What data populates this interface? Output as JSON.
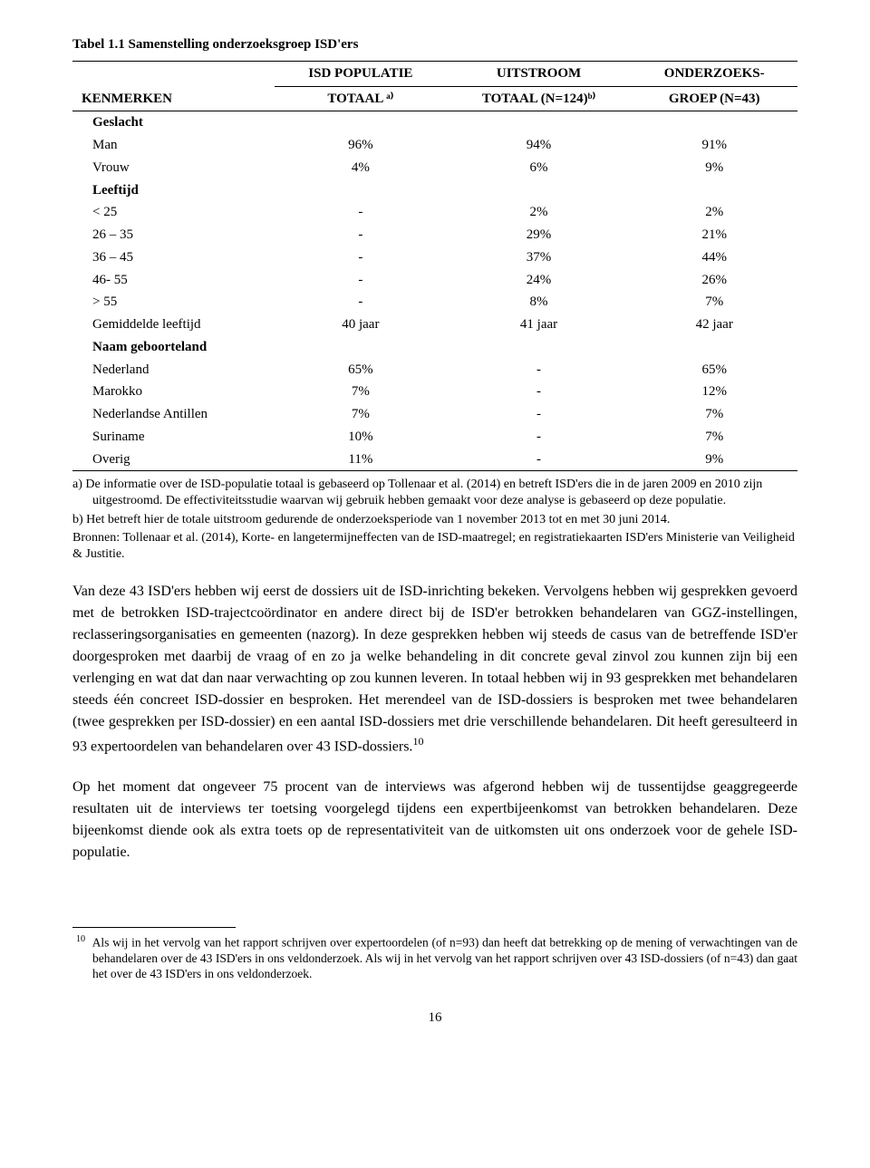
{
  "table": {
    "caption": "Tabel 1.1  Samenstelling onderzoeksgroep ISD'ers",
    "head": {
      "c0": "KENMERKEN",
      "c1a": "ISD POPULATIE",
      "c1b": "TOTAAL ᵃ⁾",
      "c2a": "UITSTROOM",
      "c2b": "TOTAAL (N=124)ᵇ⁾",
      "c3a": "ONDERZOEKS-",
      "c3b": "GROEP (N=43)"
    },
    "rows": [
      {
        "section": true,
        "label": "Geslacht"
      },
      {
        "label": "Man",
        "v": [
          "96%",
          "94%",
          "91%"
        ]
      },
      {
        "label": "Vrouw",
        "v": [
          "4%",
          "6%",
          "9%"
        ]
      },
      {
        "section": true,
        "label": "Leeftijd"
      },
      {
        "label": "< 25",
        "v": [
          "-",
          "2%",
          "2%"
        ]
      },
      {
        "label": "26 – 35",
        "v": [
          "-",
          "29%",
          "21%"
        ]
      },
      {
        "label": "36 – 45",
        "v": [
          "-",
          "37%",
          "44%"
        ]
      },
      {
        "label": "46- 55",
        "v": [
          "-",
          "24%",
          "26%"
        ]
      },
      {
        "label": "> 55",
        "v": [
          "-",
          "8%",
          "7%"
        ]
      },
      {
        "label": "Gemiddelde leeftijd",
        "v": [
          "40 jaar",
          "41 jaar",
          "42 jaar"
        ]
      },
      {
        "section": true,
        "label": "Naam geboorteland"
      },
      {
        "label": "Nederland",
        "v": [
          "65%",
          "-",
          "65%"
        ]
      },
      {
        "label": "Marokko",
        "v": [
          "7%",
          "-",
          "12%"
        ]
      },
      {
        "label": "Nederlandse Antillen",
        "v": [
          "7%",
          "-",
          "7%"
        ]
      },
      {
        "label": "Suriname",
        "v": [
          "10%",
          "-",
          "7%"
        ]
      },
      {
        "label": "Overig",
        "v": [
          "11%",
          "-",
          "9%"
        ],
        "last": true
      }
    ],
    "notes": {
      "a": "a)  De informatie over de ISD-populatie totaal is gebaseerd op Tollenaar et al. (2014) en betreft ISD'ers die in de jaren 2009 en 2010 zijn uitgestroomd. De effectiviteitsstudie waarvan wij gebruik hebben gemaakt voor deze analyse is gebaseerd op deze populatie.",
      "b": "b)  Het betreft hier de totale uitstroom gedurende de onderzoeksperiode van 1 november 2013 tot en met 30 juni 2014.",
      "bron": "Bronnen: Tollenaar et al. (2014), Korte- en langetermijneffecten van de ISD-maatregel; en registratiekaarten ISD'ers Ministerie van Veiligheid & Justitie."
    }
  },
  "paragraphs": {
    "p1": "Van deze 43 ISD'ers hebben wij eerst de dossiers uit de ISD-inrichting bekeken. Vervolgens hebben wij gesprekken gevoerd met de betrokken ISD-trajectcoördinator en andere direct bij de ISD'er betrokken behandelaren van GGZ-instellingen, reclasseringsorganisaties en gemeenten (nazorg). In deze gesprekken hebben wij steeds de casus van de betreffende ISD'er doorgesproken met daarbij de vraag of en zo ja welke behandeling in dit concrete geval zinvol zou kunnen zijn bij een verlenging en wat dat dan naar verwachting op zou kunnen leveren. In totaal hebben wij in 93 gesprekken met behandelaren steeds één concreet ISD-dossier en besproken. Het merendeel van de ISD-dossiers is besproken met twee behandelaren (twee gesprekken per ISD-dossier) en een aantal ISD-dossiers met drie verschillende behandelaren. Dit heeft geresulteerd in 93 expertoordelen van behandelaren over 43 ISD-dossiers.",
    "p1_sup": "10",
    "p2": "Op het moment dat ongeveer 75 procent van de interviews was afgerond hebben wij de tussentijdse geaggregeerde resultaten uit de interviews ter toetsing voorgelegd tijdens een expertbijeenkomst van betrokken behandelaren. Deze bijeenkomst diende ook als extra toets op de representativiteit van de uitkomsten uit ons onderzoek voor de gehele ISD-populatie."
  },
  "footnote": {
    "num": "10",
    "text": "Als wij in het vervolg van het rapport schrijven over expertoordelen (of n=93) dan heeft dat betrekking op de mening of verwachtingen van de behandelaren over de 43 ISD'ers in ons veldonderzoek. Als wij in het vervolg van het rapport schrijven over 43 ISD-dossiers (of n=43) dan gaat het over de 43 ISD'ers in ons veldonderzoek."
  },
  "pageNumber": "16"
}
